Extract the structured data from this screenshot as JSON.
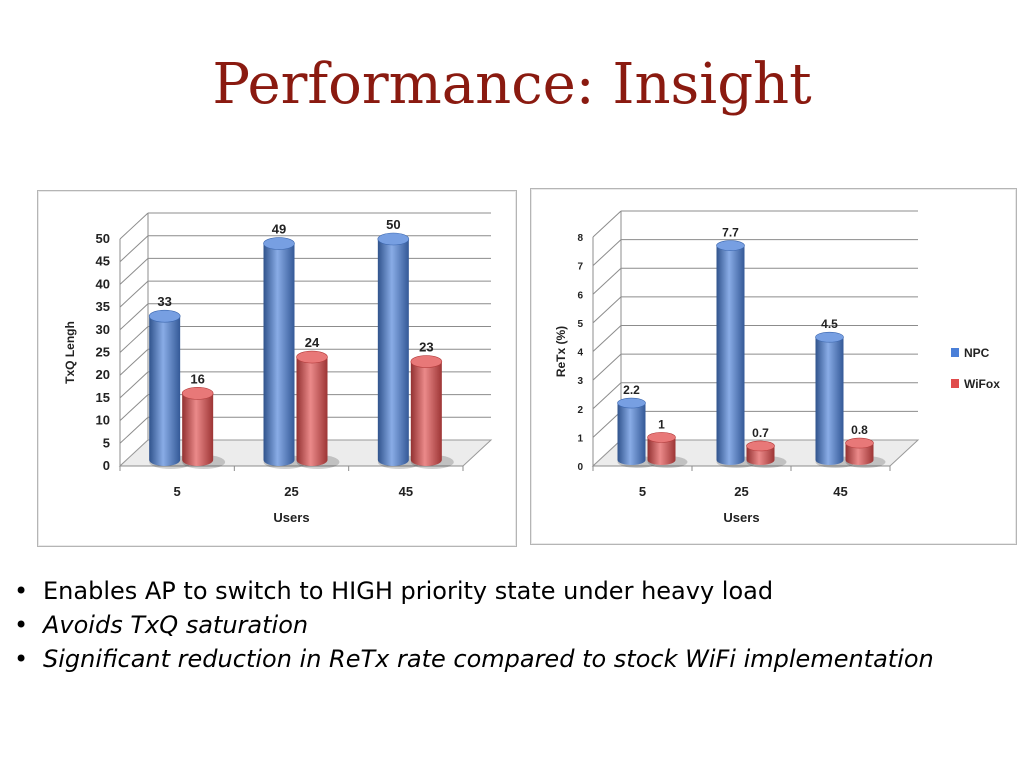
{
  "slide": {
    "title": "Performance: Insight",
    "bullets": [
      "Enables AP to switch to HIGH priority state under heavy load",
      "Avoids TxQ saturation",
      "Significant reduction in ReTx rate compared to stock WiFi implementation"
    ]
  },
  "colors": {
    "title": "#8a1a10",
    "npc": "#4a7fd8",
    "wifox": "#e04b4b"
  },
  "chart_data": [
    {
      "type": "bar",
      "title": "",
      "xlabel": "Users",
      "ylabel": "TxQ Lengh",
      "categories": [
        "5",
        "25",
        "45"
      ],
      "ylim": [
        0,
        50
      ],
      "yticks": [
        "0",
        "5",
        "10",
        "15",
        "20",
        "25",
        "30",
        "35",
        "40",
        "45",
        "50"
      ],
      "grid": true,
      "series": [
        {
          "values": [
            33,
            49,
            50
          ],
          "labels": [
            "33",
            "49",
            "50"
          ],
          "color": "#4a7fd8"
        },
        {
          "values": [
            16,
            24,
            23
          ],
          "labels": [
            "16",
            "24",
            "23"
          ],
          "color": "#e04b4b"
        }
      ]
    },
    {
      "type": "bar",
      "title": "",
      "xlabel": "Users",
      "ylabel": "ReTx (%)",
      "categories": [
        "5",
        "25",
        "45"
      ],
      "ylim": [
        0,
        8
      ],
      "yticks": [
        "0",
        "1",
        "2",
        "3",
        "4",
        "5",
        "6",
        "7",
        "8"
      ],
      "grid": true,
      "legend_position": "right",
      "series": [
        {
          "name": "NPC",
          "values": [
            2.2,
            7.7,
            4.5
          ],
          "labels": [
            "2.2",
            "7.7",
            "4.5"
          ],
          "color": "#4a7fd8"
        },
        {
          "name": "WiFox",
          "values": [
            1,
            0.7,
            0.8
          ],
          "labels": [
            "1",
            "0.7",
            "0.8"
          ],
          "color": "#e04b4b"
        }
      ]
    }
  ]
}
